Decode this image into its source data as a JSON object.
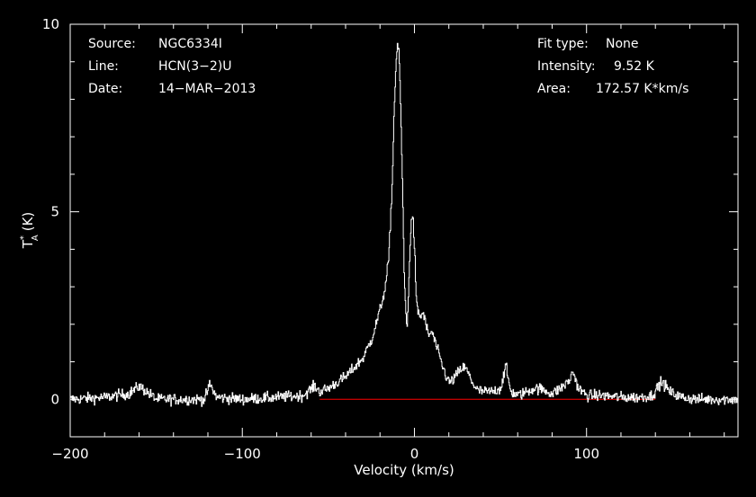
{
  "colors": {
    "background": "#000000",
    "foreground": "#ffffff",
    "baseline": "#ff0000"
  },
  "info_left": [
    {
      "key": "Source:",
      "value": "NGC6334I"
    },
    {
      "key": "Line:",
      "value": "HCN(3−2)U"
    },
    {
      "key": "Date:",
      "value": "14−MAR−2013"
    }
  ],
  "info_right": [
    {
      "key": "Fit type:",
      "value": "None"
    },
    {
      "key": "Intensity:",
      "value": "9.52 K"
    },
    {
      "key": "Area:",
      "value": "172.57 K*km/s"
    }
  ],
  "chart_data": {
    "type": "line",
    "xlabel": "Velocity (km/s)",
    "ylabel": "T*A (K)",
    "ylabel_parts": {
      "base": "T",
      "sup": "*",
      "sub": "A",
      "unit": "(K)"
    },
    "xlim": [
      -200,
      188
    ],
    "ylim": [
      -1,
      10
    ],
    "xticks": [
      -200,
      -100,
      0,
      100
    ],
    "xtick_labels": [
      "−200",
      "−100",
      "0",
      "100"
    ],
    "yticks": [
      0,
      5,
      10
    ],
    "ytick_labels": [
      "0",
      "5",
      "10"
    ],
    "baseline": 0,
    "grid": false,
    "series": [
      {
        "x": [
          -200,
          -180,
          -166,
          -160,
          -150,
          -140,
          -122,
          -119,
          -115,
          -100,
          -80,
          -65,
          -58,
          -55,
          -50,
          -40,
          -30,
          -25,
          -20,
          -17,
          -15,
          -13,
          -12,
          -11,
          -10,
          -9,
          -8,
          -7,
          -6,
          -5,
          -4.5,
          -3.5,
          -2,
          -1,
          0,
          1,
          3,
          5,
          8,
          10,
          12,
          14,
          16,
          18,
          20,
          22,
          25,
          28,
          30,
          33,
          36,
          40,
          45,
          50,
          52,
          53,
          54,
          56,
          60,
          70,
          75,
          80,
          85,
          90,
          92,
          93,
          95,
          100,
          110,
          120,
          130,
          138,
          143,
          145,
          148,
          155,
          165,
          175,
          188
        ],
        "y": [
          0.0,
          0.05,
          0.15,
          0.35,
          0.0,
          0.0,
          0.0,
          0.4,
          0.05,
          0.0,
          0.05,
          0.1,
          0.35,
          0.2,
          0.3,
          0.6,
          1.1,
          1.6,
          2.4,
          3.0,
          3.8,
          5.8,
          7.6,
          8.8,
          9.5,
          9.1,
          7.6,
          5.5,
          3.2,
          2.2,
          1.9,
          2.9,
          4.9,
          4.8,
          4.0,
          2.5,
          2.2,
          2.3,
          1.7,
          1.8,
          1.5,
          1.2,
          0.9,
          0.65,
          0.45,
          0.5,
          0.7,
          0.85,
          0.8,
          0.5,
          0.25,
          0.2,
          0.2,
          0.3,
          0.7,
          0.9,
          0.6,
          0.2,
          0.1,
          0.3,
          0.25,
          0.15,
          0.3,
          0.5,
          0.75,
          0.6,
          0.3,
          0.1,
          0.1,
          0.05,
          0.05,
          0.1,
          0.45,
          0.4,
          0.2,
          0.05,
          0.0,
          0.0,
          0.0
        ]
      }
    ]
  }
}
